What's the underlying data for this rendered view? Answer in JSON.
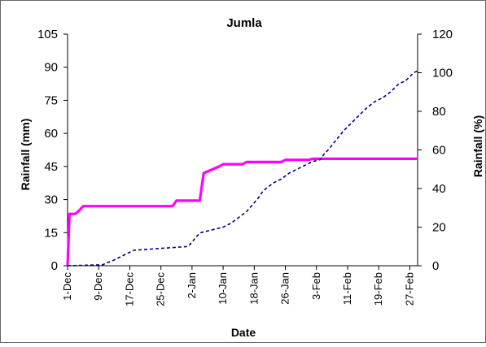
{
  "chart_data": {
    "type": "line",
    "title": "Jumla",
    "xlabel": "Date",
    "ylabel": "Rainfall (mm)",
    "y2label": "Rainfall (%)",
    "ylim": [
      0,
      105
    ],
    "y2lim": [
      0,
      120
    ],
    "yticks": [
      0,
      15,
      30,
      45,
      60,
      75,
      90,
      105
    ],
    "y2ticks": [
      0,
      20,
      40,
      60,
      80,
      100,
      120
    ],
    "x_categories": [
      "1-Dec",
      "9-Dec",
      "17-Dec",
      "25-Dec",
      "2-Jan",
      "10-Jan",
      "18-Jan",
      "26-Jan",
      "3-Feb",
      "11-Feb",
      "19-Feb",
      "27-Feb"
    ],
    "grid": false,
    "legend": "none",
    "series": [
      {
        "axis": "left",
        "color": "#ff00ff",
        "style": "solid",
        "x": [
          1,
          1.5,
          2,
          3,
          4,
          5,
          6,
          28,
          29,
          33,
          35,
          36,
          38,
          40,
          41,
          46,
          47,
          56,
          57,
          63,
          64,
          65,
          66,
          66.5,
          68,
          69,
          70,
          71,
          72,
          73,
          74,
          75,
          76,
          77,
          78,
          79,
          80,
          81,
          82,
          83,
          84,
          85,
          86,
          87,
          88,
          89,
          90,
          91
        ],
        "y": [
          0,
          23.5,
          23.5,
          23.5,
          25,
          27,
          27,
          27,
          29.5,
          29.5,
          29.5,
          42,
          43.5,
          45,
          46,
          46,
          47,
          47,
          48,
          48,
          48.5,
          48.5,
          48.5,
          48.5,
          48.5,
          48.5,
          48.5,
          48.5,
          48.5,
          48.5,
          48.5,
          48.5,
          48.5,
          48.5,
          48.5,
          48.5,
          48.5,
          48.5,
          48.5,
          48.5,
          48.5,
          48.5,
          48.5,
          48.5,
          48.5,
          48.5,
          48.5,
          48.5
        ]
      },
      {
        "axis": "right",
        "color": "#000080",
        "style": "dashed",
        "x": [
          1,
          10,
          13,
          18,
          32,
          35,
          41,
          43,
          45,
          47,
          50,
          51,
          52,
          54,
          56,
          58,
          62,
          64,
          66,
          67,
          68,
          70,
          72,
          74,
          76,
          78,
          80,
          82,
          84,
          86,
          88,
          90,
          91
        ],
        "y": [
          0,
          0.5,
          3,
          8,
          10,
          17,
          20,
          22,
          25,
          28,
          35,
          38,
          40,
          43,
          45,
          48,
          52,
          54,
          55,
          58,
          60,
          65,
          70,
          74,
          78,
          82,
          85,
          87,
          90,
          94,
          96,
          100,
          101
        ]
      }
    ]
  }
}
